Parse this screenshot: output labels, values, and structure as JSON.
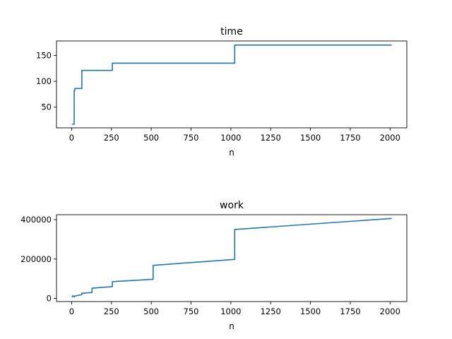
{
  "chart_data": [
    {
      "type": "line",
      "title": "time",
      "xlabel": "n",
      "ylabel": "",
      "xlim": [
        -95,
        2105
      ],
      "ylim": [
        10,
        178
      ],
      "xticks": [
        0,
        250,
        500,
        750,
        1000,
        1250,
        1500,
        1750,
        2000
      ],
      "yticks": [
        50,
        100,
        150
      ],
      "grid": false,
      "color": "#1f77b4",
      "series": [
        {
          "x": [
            2,
            16,
            16,
            20,
            20,
            32,
            32,
            64,
            64,
            256,
            256,
            1024,
            1024,
            2010
          ],
          "y": [
            17,
            17,
            82,
            82,
            86,
            86,
            86,
            86,
            121,
            121,
            135,
            135,
            170,
            170
          ]
        }
      ]
    },
    {
      "type": "line",
      "title": "work",
      "xlabel": "n",
      "ylabel": "",
      "xlim": [
        -95,
        2105
      ],
      "ylim": [
        -16000,
        425000
      ],
      "xticks": [
        0,
        250,
        500,
        750,
        1000,
        1250,
        1500,
        1750,
        2000
      ],
      "yticks": [
        0,
        200000,
        400000
      ],
      "grid": false,
      "color": "#1f77b4",
      "series": [
        {
          "x": [
            2,
            8,
            16,
            20,
            32,
            32,
            64,
            64,
            128,
            128,
            256,
            256,
            512,
            512,
            1024,
            1024,
            2010
          ],
          "y": [
            6000,
            14000,
            7000,
            12000,
            14000,
            14000,
            19000,
            26000,
            30000,
            52000,
            60000,
            85000,
            97000,
            168000,
            198000,
            350000,
            406000
          ]
        }
      ]
    }
  ]
}
